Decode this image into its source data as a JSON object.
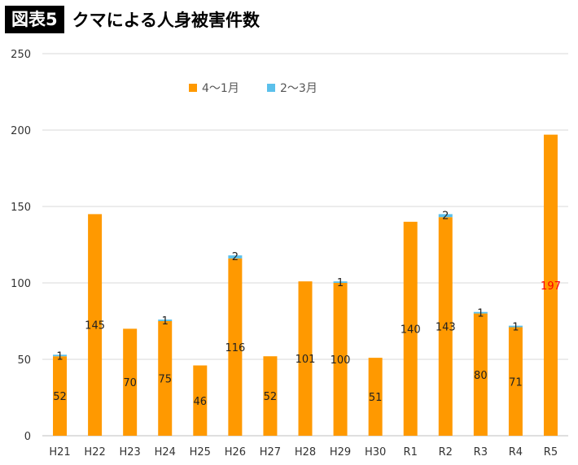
{
  "header": {
    "badge": "図表5",
    "title": "クマによる人身被害件数"
  },
  "chart_data": {
    "type": "bar",
    "stacked": true,
    "categories": [
      "H21",
      "H22",
      "H23",
      "H24",
      "H25",
      "H26",
      "H27",
      "H28",
      "H29",
      "H30",
      "R1",
      "R2",
      "R3",
      "R4",
      "R5"
    ],
    "series": [
      {
        "name": "4～1月",
        "color": "#FF9900",
        "values": [
          52,
          145,
          70,
          75,
          46,
          116,
          52,
          101,
          100,
          51,
          140,
          143,
          80,
          71,
          197
        ],
        "labels": [
          "52",
          "145",
          "70",
          "75",
          "46",
          "116",
          "52",
          "101",
          "100",
          "51",
          "140",
          "143",
          "80",
          "71",
          "197"
        ]
      },
      {
        "name": "2～3月",
        "color": "#5BC0EB",
        "values": [
          1,
          0,
          0,
          1,
          0,
          2,
          0,
          0,
          1,
          0,
          0,
          2,
          1,
          1,
          0
        ],
        "labels": [
          "1",
          "",
          "",
          "1",
          "",
          "2",
          "",
          "",
          "1",
          "",
          "",
          "2",
          "1",
          "1",
          ""
        ]
      }
    ],
    "highlight_label_color": "#FF0000",
    "highlight_index": 14,
    "yticks": [
      "0",
      "50",
      "100",
      "150",
      "200",
      "250"
    ],
    "ylim": [
      0,
      250
    ],
    "grid": true,
    "legend_position": "top-center"
  }
}
